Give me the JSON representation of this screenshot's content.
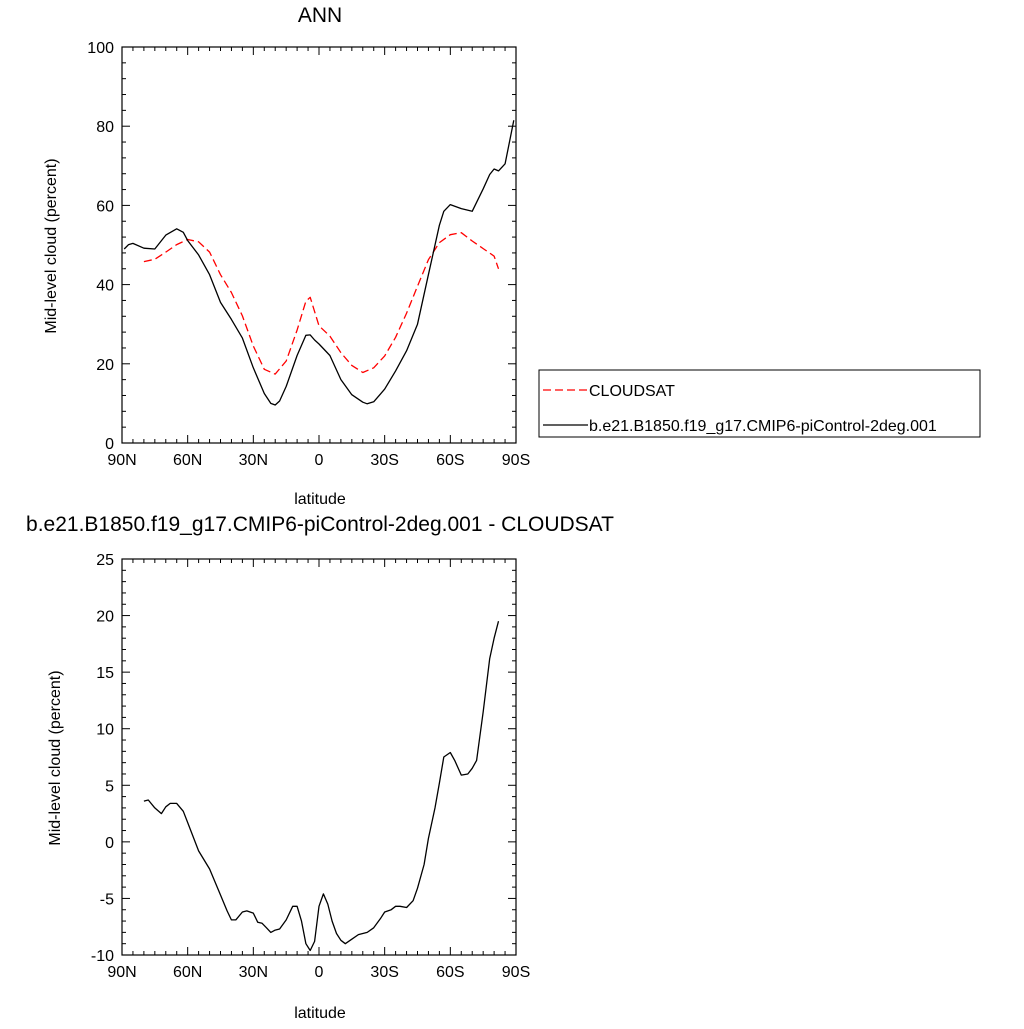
{
  "chart_data": [
    {
      "type": "line",
      "title": "ANN",
      "xlabel": "latitude",
      "ylabel": "Mid-level cloud (percent)",
      "xlim": [
        90,
        -90
      ],
      "ylim": [
        0,
        100
      ],
      "grid": false,
      "legend_position": "right",
      "x_ticks": [
        {
          "value": 90,
          "label": "90N"
        },
        {
          "value": 60,
          "label": "60N"
        },
        {
          "value": 30,
          "label": "30N"
        },
        {
          "value": 0,
          "label": "0"
        },
        {
          "value": -30,
          "label": "30S"
        },
        {
          "value": -60,
          "label": "60S"
        },
        {
          "value": -90,
          "label": "90S"
        }
      ],
      "y_ticks": [
        {
          "value": 0,
          "label": "0"
        },
        {
          "value": 20,
          "label": "20"
        },
        {
          "value": 40,
          "label": "40"
        },
        {
          "value": 60,
          "label": "60"
        },
        {
          "value": 80,
          "label": "80"
        },
        {
          "value": 100,
          "label": "100"
        }
      ],
      "series": [
        {
          "name": "CLOUDSAT",
          "color": "#ff0000",
          "dash": "dashed",
          "x": [
            80,
            75,
            70,
            65,
            60,
            55,
            50,
            45,
            40,
            35,
            30,
            25,
            20,
            15,
            10,
            6,
            4,
            0,
            -5,
            -10,
            -15,
            -20,
            -25,
            -30,
            -35,
            -40,
            -45,
            -50,
            -55,
            -60,
            -65,
            -70,
            -75,
            -80,
            -82
          ],
          "y": [
            45.8,
            46.4,
            48.2,
            50.1,
            51.4,
            50.8,
            48.2,
            42.5,
            38.0,
            32.1,
            24.5,
            18.6,
            17.4,
            20.7,
            28.5,
            35.8,
            36.8,
            29.6,
            27.0,
            22.8,
            19.6,
            17.8,
            19.0,
            22.0,
            26.7,
            32.8,
            39.6,
            46.3,
            50.6,
            52.6,
            53.1,
            51.0,
            49.1,
            47.2,
            44.0
          ]
        },
        {
          "name": "b.e21.B1850.f19_g17.CMIP6-piControl-2deg.001",
          "color": "#000000",
          "dash": "solid",
          "x": [
            89,
            87,
            85,
            80,
            75,
            70,
            65,
            62,
            60,
            55,
            50,
            45,
            40,
            35,
            30,
            25,
            22,
            20,
            18,
            15,
            10,
            6,
            4,
            2,
            0,
            -5,
            -10,
            -15,
            -20,
            -22,
            -25,
            -30,
            -35,
            -40,
            -45,
            -50,
            -55,
            -57,
            -60,
            -65,
            -70,
            -75,
            -78,
            -80,
            -82,
            -85,
            -89
          ],
          "y": [
            49.0,
            50.1,
            50.4,
            49.2,
            49.0,
            52.5,
            54.1,
            53.2,
            51.1,
            47.5,
            42.5,
            35.5,
            31.2,
            26.5,
            19.0,
            12.5,
            10.0,
            9.6,
            10.6,
            14.3,
            22.1,
            27.2,
            27.3,
            26.0,
            25.0,
            22.1,
            16.0,
            12.2,
            10.3,
            9.9,
            10.4,
            13.6,
            18.2,
            23.3,
            30.0,
            42.5,
            55.0,
            58.5,
            60.2,
            59.2,
            58.5,
            64.2,
            67.8,
            69.2,
            68.7,
            70.5,
            81.5
          ]
        }
      ]
    },
    {
      "type": "line",
      "title": "b.e21.B1850.f19_g17.CMIP6-piControl-2deg.001 - CLOUDSAT",
      "xlabel": "latitude",
      "ylabel": "Mid-level cloud (percent)",
      "xlim": [
        90,
        -90
      ],
      "ylim": [
        -10,
        25
      ],
      "grid": false,
      "x_ticks": [
        {
          "value": 90,
          "label": "90N"
        },
        {
          "value": 60,
          "label": "60N"
        },
        {
          "value": 30,
          "label": "30N"
        },
        {
          "value": 0,
          "label": "0"
        },
        {
          "value": -30,
          "label": "30S"
        },
        {
          "value": -60,
          "label": "60S"
        },
        {
          "value": -90,
          "label": "90S"
        }
      ],
      "y_ticks": [
        {
          "value": -10,
          "label": "-10"
        },
        {
          "value": -5,
          "label": "-5"
        },
        {
          "value": 0,
          "label": "0"
        },
        {
          "value": 5,
          "label": "5"
        },
        {
          "value": 10,
          "label": "10"
        },
        {
          "value": 15,
          "label": "15"
        },
        {
          "value": 20,
          "label": "20"
        },
        {
          "value": 25,
          "label": "25"
        }
      ],
      "series": [
        {
          "color": "#000000",
          "dash": "solid",
          "x": [
            80,
            78,
            75,
            72,
            70,
            68,
            65,
            62,
            60,
            55,
            50,
            45,
            42,
            40,
            38,
            35,
            33,
            30,
            28,
            26,
            24,
            22,
            20,
            18,
            15,
            12,
            10,
            8,
            6,
            4,
            2,
            0,
            -2,
            -4,
            -6,
            -8,
            -10,
            -12,
            -15,
            -18,
            -22,
            -25,
            -28,
            -30,
            -33,
            -35,
            -37,
            -40,
            -43,
            -45,
            -48,
            -50,
            -53,
            -55,
            -57,
            -60,
            -62,
            -65,
            -68,
            -70,
            -72,
            -75,
            -78,
            -80,
            -82
          ],
          "y": [
            3.6,
            3.7,
            3.0,
            2.5,
            3.1,
            3.4,
            3.4,
            2.7,
            1.7,
            -0.8,
            -2.4,
            -4.7,
            -6.1,
            -6.9,
            -6.9,
            -6.2,
            -6.1,
            -6.3,
            -7.1,
            -7.2,
            -7.6,
            -8.0,
            -7.8,
            -7.7,
            -6.9,
            -5.7,
            -5.7,
            -7.0,
            -9.0,
            -9.6,
            -8.8,
            -5.7,
            -4.6,
            -5.5,
            -7.0,
            -8.1,
            -8.7,
            -9.0,
            -8.6,
            -8.2,
            -8.0,
            -7.6,
            -6.8,
            -6.2,
            -6.0,
            -5.7,
            -5.7,
            -5.8,
            -5.2,
            -4.1,
            -2.0,
            0.3,
            3.0,
            5.2,
            7.5,
            7.9,
            7.2,
            5.9,
            6.0,
            6.5,
            7.2,
            11.5,
            16.2,
            18.0,
            19.5
          ]
        }
      ]
    }
  ]
}
